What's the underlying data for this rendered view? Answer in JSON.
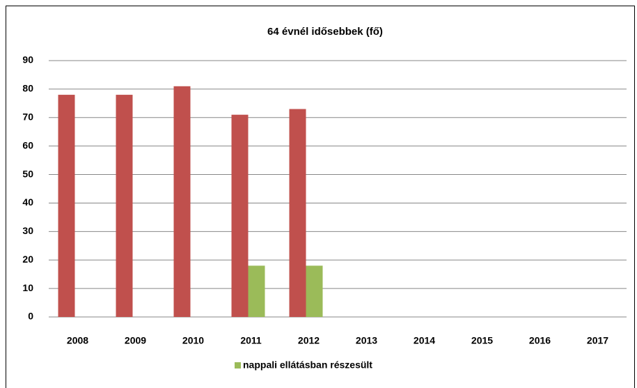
{
  "chart_data": {
    "type": "bar",
    "title": "64 évnél idősebbek (fő)",
    "categories": [
      "2008",
      "2009",
      "2010",
      "2011",
      "2012",
      "2013",
      "2014",
      "2015",
      "2016",
      "2017"
    ],
    "series": [
      {
        "color": "#c0504d",
        "values": [
          78,
          78,
          81,
          71,
          73,
          null,
          null,
          null,
          null,
          null
        ]
      },
      {
        "name": "nappali ellátásban részesült",
        "color": "#9bbb59",
        "values": [
          null,
          null,
          null,
          18,
          18,
          null,
          null,
          null,
          null,
          null
        ]
      }
    ],
    "ylim": [
      0,
      90
    ],
    "yticks": [
      0,
      10,
      20,
      30,
      40,
      50,
      60,
      70,
      80,
      90
    ],
    "grid": true,
    "legend": "bottom"
  }
}
